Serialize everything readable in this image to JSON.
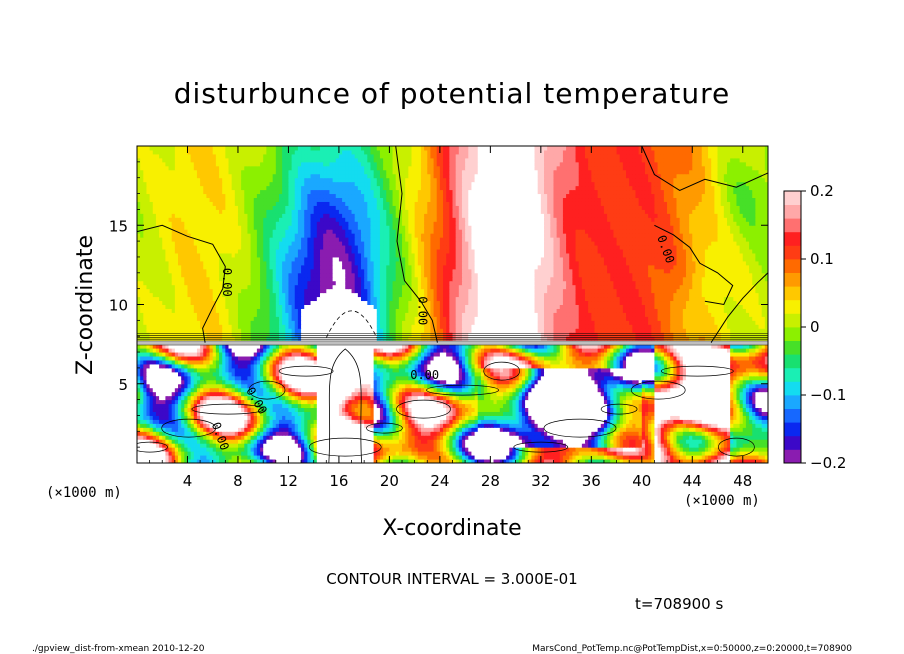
{
  "chart_data": {
    "type": "heatmap",
    "title": "disturbunce of potential temperature",
    "xlabel": "X-coordinate",
    "ylabel": "Z-coordinate",
    "x_unit_label": "(×1000 m)",
    "y_unit_label": "(×1000 m)",
    "xlim": [
      0,
      50
    ],
    "ylim": [
      0,
      20
    ],
    "x_ticks": [
      4,
      8,
      12,
      16,
      20,
      24,
      28,
      32,
      36,
      40,
      44,
      48
    ],
    "y_ticks": [
      5,
      10,
      15
    ],
    "colorbar": {
      "range": [
        -0.2,
        0.2
      ],
      "tick_values": [
        0.2,
        0.1,
        0,
        -0.1,
        -0.2
      ],
      "tick_labels": [
        "0.2",
        "0.1",
        "0",
        "−0.1",
        "−0.2"
      ],
      "colors": [
        "#8a1cb0",
        "#3c08c8",
        "#0a28f0",
        "#1668ff",
        "#1aa8ff",
        "#13dcf0",
        "#1aefb4",
        "#18e070",
        "#46e028",
        "#8cf000",
        "#c8f000",
        "#f8f000",
        "#ffc800",
        "#ff9a00",
        "#ff6a00",
        "#ff3c14",
        "#ff2020",
        "#ff7070",
        "#ffa8a8",
        "#ffd0d0"
      ]
    },
    "contour_labels": [
      "0.00",
      "0.00",
      "0.00",
      "0.00",
      "0.00",
      "0.00"
    ],
    "contour_interval_text": "CONTOUR INTERVAL = 3.000E-01",
    "time_text": "t=708900 s"
  },
  "footer": {
    "left": "./gpview_dist-from-xmean  2010-12-20",
    "right": "MarsCond_PotTemp.nc@PotTempDist,x=0:50000,z=0:20000,t=708900"
  }
}
